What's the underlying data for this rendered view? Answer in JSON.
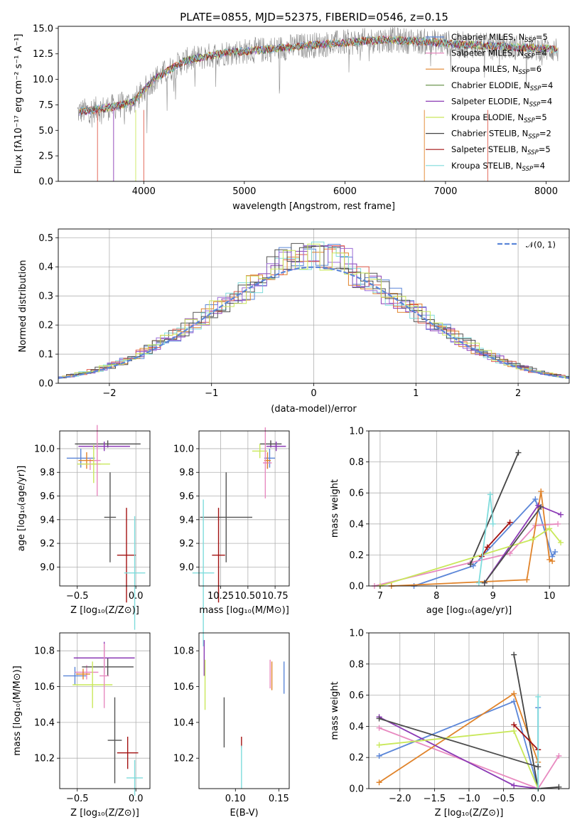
{
  "title": "PLATE=0855, MJD=52375, FIBERID=0546, z=0.15",
  "palette": [
    "#5b86d8",
    "#9b6bd6",
    "#e0832a",
    "#4d4d4d",
    "#8b3ab5",
    "#c9e85a",
    "#555555",
    "#a31212",
    "#7fdcdc",
    "#e88ac0",
    "#e05a4a"
  ],
  "chart_data": [
    {
      "id": "spectrum",
      "type": "line",
      "xlabel": "wavelength [Angstrom, rest frame]",
      "ylabel": "Flux [fλ10⁻¹⁷ erg cm⁻² s⁻¹ A⁻¹]",
      "xlim": [
        3150,
        8230
      ],
      "ylim": [
        0,
        15.2
      ],
      "xticks": [
        "4000",
        "5000",
        "6000",
        "7000",
        "8000"
      ],
      "yticks": [
        "0.0",
        "2.5",
        "5.0",
        "7.5",
        "10.0",
        "12.5",
        "15.0"
      ],
      "grid": false,
      "legend_position": "top-right",
      "data_range": [
        3340,
        8120
      ],
      "data_trend": {
        "x": [
          3340,
          3500,
          3700,
          3900,
          4100,
          4400,
          4800,
          5200,
          5600,
          6000,
          6400,
          6800,
          7200,
          7600,
          8000,
          8120
        ],
        "y": [
          6.8,
          7.0,
          7.3,
          7.8,
          10.0,
          11.8,
          12.6,
          12.9,
          13.3,
          13.6,
          13.9,
          13.7,
          13.4,
          13.2,
          13.0,
          12.9
        ]
      },
      "series": [
        {
          "name": "Chabrier MILES, N_SSP=5",
          "color": "#5b86d8"
        },
        {
          "name": "Salpeter MILES, N_SSP=4",
          "color": "#e88ac0"
        },
        {
          "name": "Kroupa MILES, N_SSP=6",
          "color": "#e0832a"
        },
        {
          "name": "Chabrier ELODIE, N_SSP=4",
          "color": "#5d8a3c"
        },
        {
          "name": "Salpeter ELODIE, N_SSP=4",
          "color": "#8b3ab5"
        },
        {
          "name": "Kroupa ELODIE, N_SSP=5",
          "color": "#c9e85a"
        },
        {
          "name": "Chabrier STELIB, N_SSP=2",
          "color": "#444444"
        },
        {
          "name": "Salpeter STELIB, N_SSP=5",
          "color": "#a31212"
        },
        {
          "name": "Kroupa STELIB, N_SSP=4",
          "color": "#7fdcdc"
        }
      ]
    },
    {
      "id": "residuals",
      "type": "histogram",
      "xlabel": "(data-model)/error",
      "ylabel": "Normed distribution",
      "xlim": [
        -2.5,
        2.5
      ],
      "ylim": [
        0,
        0.53
      ],
      "xticks": [
        "−2",
        "−1",
        "0",
        "1",
        "2"
      ],
      "yticks": [
        "0.0",
        "0.1",
        "0.2",
        "0.3",
        "0.4",
        "0.5"
      ],
      "grid": true,
      "legend": "𝒩(0, 1)",
      "legend_position": "top-right",
      "gaussian_mu": 0,
      "gaussian_sigma": 1
    },
    {
      "id": "age-Z",
      "type": "scatter-errorbar",
      "xlabel": "Z [log₁₀(Z/Z⊙)]",
      "ylabel": "age  [log₁₀(age/yr)]",
      "xlim": [
        -0.65,
        0.12
      ],
      "ylim": [
        8.84,
        10.15
      ],
      "xticks": [
        "−0.5",
        "0.0"
      ],
      "yticks": [
        "9.0",
        "9.2",
        "9.4",
        "9.6",
        "9.8",
        "10.0"
      ],
      "xtick_values": [
        -0.5,
        0.0
      ],
      "ytick_values": [
        9.0,
        9.2,
        9.4,
        9.6,
        9.8,
        10.0
      ],
      "grid": true,
      "points": [
        {
          "x": -0.47,
          "y": 9.92,
          "xerr": 0.12,
          "yerr": 0.08,
          "color": "#5b86d8"
        },
        {
          "x": -0.39,
          "y": 9.87,
          "xerr": 0.09,
          "yerr": 0.05,
          "color": "#e88ac0"
        },
        {
          "x": -0.42,
          "y": 9.9,
          "xerr": 0.07,
          "yerr": 0.07,
          "color": "#e0832a"
        },
        {
          "x": -0.24,
          "y": 10.04,
          "xerr": 0.28,
          "yerr": 0.03,
          "color": "#4d4d4d"
        },
        {
          "x": -0.27,
          "y": 10.02,
          "xerr": 0.22,
          "yerr": 0.04,
          "color": "#8b3ab5"
        },
        {
          "x": -0.36,
          "y": 9.87,
          "xerr": 0.14,
          "yerr": 0.16,
          "color": "#c9e85a"
        },
        {
          "x": -0.22,
          "y": 9.42,
          "xerr": 0.05,
          "yerr": 0.38,
          "color": "#555555"
        },
        {
          "x": -0.08,
          "y": 9.1,
          "xerr": 0.08,
          "yerr": 0.4,
          "color": "#a31212"
        },
        {
          "x": -0.01,
          "y": 8.95,
          "xerr": 0.09,
          "yerr": 0.48,
          "color": "#7fdcdc"
        },
        {
          "x": -0.33,
          "y": 9.9,
          "xerr": 0.03,
          "yerr": 0.3,
          "color": "#e88ac0"
        }
      ]
    },
    {
      "id": "age-mass",
      "type": "scatter-errorbar",
      "xlabel": "mass [log₁₀(M/M⊙)]",
      "ylabel": "",
      "xlim": [
        10.05,
        10.88
      ],
      "ylim": [
        8.84,
        10.15
      ],
      "xticks": [
        "10.25",
        "10.50",
        "10.75"
      ],
      "yticks": [
        "9.0",
        "9.2",
        "9.4",
        "9.6",
        "9.8",
        "10.0"
      ],
      "xtick_values": [
        10.25,
        10.5,
        10.75
      ],
      "ytick_values": [
        9.0,
        9.2,
        9.4,
        9.6,
        9.8,
        10.0
      ],
      "grid": true,
      "points": [
        {
          "x": 10.7,
          "y": 9.92,
          "xerr": 0.05,
          "yerr": 0.08,
          "color": "#5b86d8"
        },
        {
          "x": 10.68,
          "y": 9.88,
          "xerr": 0.04,
          "yerr": 0.05,
          "color": "#e88ac0"
        },
        {
          "x": 10.68,
          "y": 9.9,
          "xerr": 0.03,
          "yerr": 0.07,
          "color": "#e0832a"
        },
        {
          "x": 10.71,
          "y": 10.04,
          "xerr": 0.1,
          "yerr": 0.03,
          "color": "#4d4d4d"
        },
        {
          "x": 10.76,
          "y": 10.02,
          "xerr": 0.09,
          "yerr": 0.04,
          "color": "#8b3ab5"
        },
        {
          "x": 10.61,
          "y": 9.98,
          "xerr": 0.07,
          "yerr": 0.06,
          "color": "#c9e85a"
        },
        {
          "x": 10.3,
          "y": 9.42,
          "xerr": 0.24,
          "yerr": 0.38,
          "color": "#555555"
        },
        {
          "x": 10.23,
          "y": 9.1,
          "xerr": 0.06,
          "yerr": 0.4,
          "color": "#a31212"
        },
        {
          "x": 10.09,
          "y": 8.95,
          "xerr": 0.1,
          "yerr": 0.62,
          "color": "#7fdcdc"
        },
        {
          "x": 10.66,
          "y": 9.88,
          "xerr": 0.02,
          "yerr": 0.3,
          "color": "#e88ac0"
        }
      ]
    },
    {
      "id": "weight-age",
      "type": "line",
      "xlabel": "age  [log₁₀(age/yr)]",
      "ylabel": "mass weight",
      "xlim": [
        6.8,
        10.35
      ],
      "ylim": [
        0,
        1
      ],
      "xticks": [
        "7",
        "8",
        "9",
        "10"
      ],
      "yticks": [
        "0.0",
        "0.2",
        "0.4",
        "0.6",
        "0.8",
        "1.0"
      ],
      "xtick_values": [
        7,
        8,
        9,
        10
      ],
      "ytick_values": [
        0,
        0.2,
        0.4,
        0.6,
        0.8,
        1.0
      ],
      "grid": true,
      "series": [
        {
          "color": "#5b86d8",
          "x": [
            7.6,
            8.65,
            9.75,
            10.05,
            10.1
          ],
          "y": [
            0.0,
            0.13,
            0.56,
            0.19,
            0.22
          ]
        },
        {
          "color": "#e88ac0",
          "x": [
            6.9,
            8.6,
            9.3,
            9.75,
            10.15
          ],
          "y": [
            0.0,
            0.15,
            0.21,
            0.39,
            0.4
          ]
        },
        {
          "color": "#e0832a",
          "x": [
            7.2,
            9.6,
            9.85,
            10.0,
            10.05
          ],
          "y": [
            0.0,
            0.04,
            0.61,
            0.17,
            0.16
          ]
        },
        {
          "color": "#444444",
          "x": [
            8.6,
            9.45
          ],
          "y": [
            0.14,
            0.86
          ]
        },
        {
          "color": "#8b3ab5",
          "x": [
            8.85,
            9.8,
            10.2
          ],
          "y": [
            0.02,
            0.52,
            0.46
          ]
        },
        {
          "color": "#c9e85a",
          "x": [
            7.0,
            9.7,
            10.0,
            10.2
          ],
          "y": [
            0.0,
            0.3,
            0.37,
            0.28
          ]
        },
        {
          "color": "#a31212",
          "x": [
            8.8,
            8.9,
            9.3
          ],
          "y": [
            0.19,
            0.25,
            0.41
          ]
        },
        {
          "color": "#7fdcdc",
          "x": [
            8.75,
            8.95,
            9.0
          ],
          "y": [
            0.02,
            0.59,
            0.4
          ]
        },
        {
          "color": "#4d4d4d",
          "x": [
            8.85,
            9.85
          ],
          "y": [
            0.02,
            0.51
          ]
        }
      ]
    },
    {
      "id": "mass-Z",
      "type": "scatter-errorbar",
      "xlabel": "Z [log₁₀(Z/Z⊙)]",
      "ylabel": "mass [log₁₀(M/M⊙)]",
      "xlim": [
        -0.65,
        0.12
      ],
      "ylim": [
        10.03,
        10.9
      ],
      "xticks": [
        "−0.5",
        "0.0"
      ],
      "yticks": [
        "10.2",
        "10.4",
        "10.6",
        "10.8"
      ],
      "xtick_values": [
        -0.5,
        0.0
      ],
      "ytick_values": [
        10.2,
        10.4,
        10.6,
        10.8
      ],
      "grid": true,
      "points": [
        {
          "x": -0.52,
          "y": 10.66,
          "xerr": 0.1,
          "yerr": 0.05,
          "color": "#5b86d8"
        },
        {
          "x": -0.42,
          "y": 10.68,
          "xerr": 0.1,
          "yerr": 0.04,
          "color": "#e88ac0"
        },
        {
          "x": -0.45,
          "y": 10.67,
          "xerr": 0.06,
          "yerr": 0.03,
          "color": "#e0832a"
        },
        {
          "x": -0.24,
          "y": 10.71,
          "xerr": 0.22,
          "yerr": 0.05,
          "color": "#4d4d4d"
        },
        {
          "x": -0.27,
          "y": 10.76,
          "xerr": 0.26,
          "yerr": 0.09,
          "color": "#8b3ab5"
        },
        {
          "x": -0.37,
          "y": 10.61,
          "xerr": 0.17,
          "yerr": 0.13,
          "color": "#c9e85a"
        },
        {
          "x": -0.18,
          "y": 10.3,
          "xerr": 0.06,
          "yerr": 0.24,
          "color": "#555555"
        },
        {
          "x": -0.07,
          "y": 10.23,
          "xerr": 0.09,
          "yerr": 0.09,
          "color": "#a31212"
        },
        {
          "x": -0.01,
          "y": 10.09,
          "xerr": 0.07,
          "yerr": 0.1,
          "color": "#7fdcdc"
        },
        {
          "x": -0.27,
          "y": 10.66,
          "xerr": 0.04,
          "yerr": 0.18,
          "color": "#e88ac0"
        }
      ]
    },
    {
      "id": "mass-EBV",
      "type": "scatter-errorbar",
      "xlabel": "E(B-V)",
      "ylabel": "",
      "xlim": [
        0.058,
        0.162
      ],
      "ylim": [
        10.03,
        10.9
      ],
      "xticks": [
        "0.10",
        "0.15"
      ],
      "yticks": [
        "10.2",
        "10.4",
        "10.6",
        "10.8"
      ],
      "xtick_values": [
        0.1,
        0.15
      ],
      "ytick_values": [
        10.2,
        10.4,
        10.6,
        10.8
      ],
      "grid": false,
      "points": [
        {
          "x": 0.156,
          "y": 10.65,
          "xerr": 0,
          "yerr": 0.09,
          "color": "#5b86d8"
        },
        {
          "x": 0.14,
          "y": 10.67,
          "xerr": 0,
          "yerr": 0.08,
          "color": "#e88ac0"
        },
        {
          "x": 0.142,
          "y": 10.66,
          "xerr": 0,
          "yerr": 0.08,
          "color": "#e0832a"
        },
        {
          "x": 0.064,
          "y": 10.76,
          "xerr": 0,
          "yerr": 0.1,
          "color": "#8b3ab5"
        },
        {
          "x": 0.065,
          "y": 10.61,
          "xerr": 0,
          "yerr": 0.14,
          "color": "#c9e85a"
        },
        {
          "x": 0.087,
          "y": 10.4,
          "xerr": 0,
          "yerr": 0.14,
          "color": "#555555"
        },
        {
          "x": 0.107,
          "y": 10.29,
          "xerr": 0,
          "yerr": 0.03,
          "color": "#a31212"
        },
        {
          "x": 0.107,
          "y": 10.15,
          "xerr": 0,
          "yerr": 0.12,
          "color": "#7fdcdc"
        }
      ]
    },
    {
      "id": "weight-Z",
      "type": "line",
      "xlabel": "Z [log₁₀(Z/Z⊙)]",
      "ylabel": "mass weight",
      "xlim": [
        -2.45,
        0.45
      ],
      "ylim": [
        0,
        1
      ],
      "xticks": [
        "−2.0",
        "−1.5",
        "−1.0",
        "−0.5",
        "0.0"
      ],
      "yticks": [
        "0.0",
        "0.2",
        "0.4",
        "0.6",
        "0.8",
        "1.0"
      ],
      "xtick_values": [
        -2.0,
        -1.5,
        -1.0,
        -0.5,
        0.0
      ],
      "ytick_values": [
        0,
        0.2,
        0.4,
        0.6,
        0.8,
        1.0
      ],
      "grid": true,
      "series": [
        {
          "color": "#5b86d8",
          "x": [
            -2.3,
            -0.35,
            0.0,
            0.0
          ],
          "y": [
            0.21,
            0.56,
            0.0,
            0.52
          ]
        },
        {
          "color": "#e88ac0",
          "x": [
            -2.3,
            0.0,
            0.3
          ],
          "y": [
            0.39,
            0.0,
            0.21
          ]
        },
        {
          "color": "#e0832a",
          "x": [
            -2.3,
            -0.35,
            0.0
          ],
          "y": [
            0.04,
            0.61,
            0.17
          ]
        },
        {
          "color": "#444444",
          "x": [
            -0.35,
            0.0,
            0.3
          ],
          "y": [
            0.86,
            0.0,
            0.01
          ]
        },
        {
          "color": "#8b3ab5",
          "x": [
            -2.3,
            -0.35,
            0.0
          ],
          "y": [
            0.46,
            0.02,
            0.0
          ]
        },
        {
          "color": "#c9e85a",
          "x": [
            -2.3,
            -0.35,
            0.0
          ],
          "y": [
            0.28,
            0.37,
            0.0
          ]
        },
        {
          "color": "#a31212",
          "x": [
            -0.35,
            0.0
          ],
          "y": [
            0.41,
            0.25
          ]
        },
        {
          "color": "#7fdcdc",
          "x": [
            0.0,
            0.0
          ],
          "y": [
            0.59,
            0.0
          ]
        },
        {
          "color": "#4d4d4d",
          "x": [
            -2.3,
            0.0
          ],
          "y": [
            0.45,
            0.14
          ]
        }
      ]
    }
  ]
}
